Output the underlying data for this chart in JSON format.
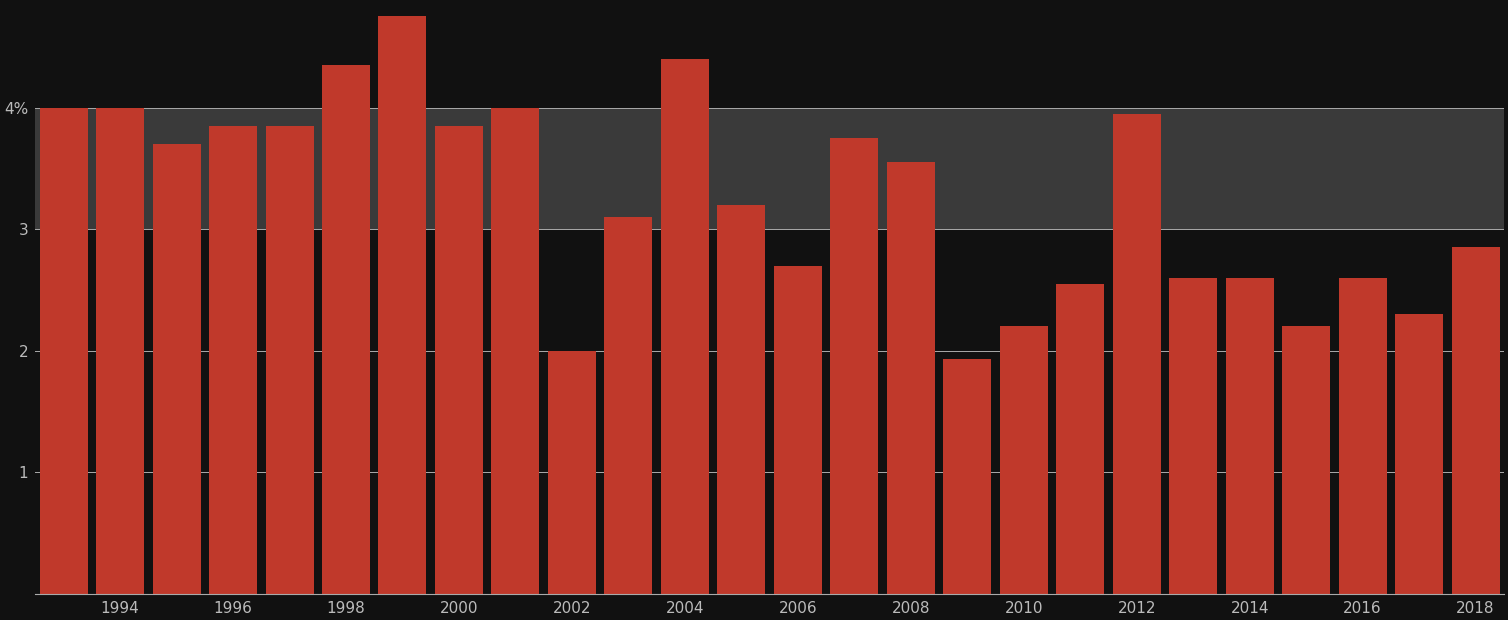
{
  "years": [
    1993,
    1994,
    1995,
    1996,
    1997,
    1998,
    1999,
    2000,
    2001,
    2002,
    2003,
    2004,
    2005,
    2006,
    2007,
    2008,
    2009,
    2010,
    2011,
    2012,
    2013,
    2014,
    2015,
    2016,
    2017,
    2018
  ],
  "values": [
    4.0,
    4.0,
    3.7,
    3.85,
    3.85,
    4.35,
    4.75,
    3.85,
    4.0,
    2.0,
    3.1,
    4.4,
    3.2,
    2.7,
    3.75,
    3.55,
    1.93,
    2.2,
    2.55,
    3.95,
    2.6,
    2.6,
    2.2,
    2.6,
    2.3,
    2.85
  ],
  "bar_color": "#c0392b",
  "background_color": "#111111",
  "band_color": "#3a3a3a",
  "band_lower": 3.0,
  "band_upper": 4.0,
  "gridline_color": "#aaaaaa",
  "gridline_lw": 0.7,
  "yticks": [
    1,
    2,
    3,
    4
  ],
  "ytick_labels": [
    "1",
    "2",
    "3",
    "4%"
  ],
  "ylim_top": 4.85,
  "tick_label_color": "#bbbbbb",
  "bar_width": 0.85,
  "xtick_labels": [
    "1994",
    "1996",
    "1998",
    "2000",
    "2002",
    "2004",
    "2006",
    "2008",
    "2010",
    "2012",
    "2014",
    "2016",
    "2018"
  ],
  "xtick_positions": [
    1,
    3,
    5,
    7,
    9,
    11,
    13,
    15,
    17,
    19,
    21,
    23,
    25
  ]
}
